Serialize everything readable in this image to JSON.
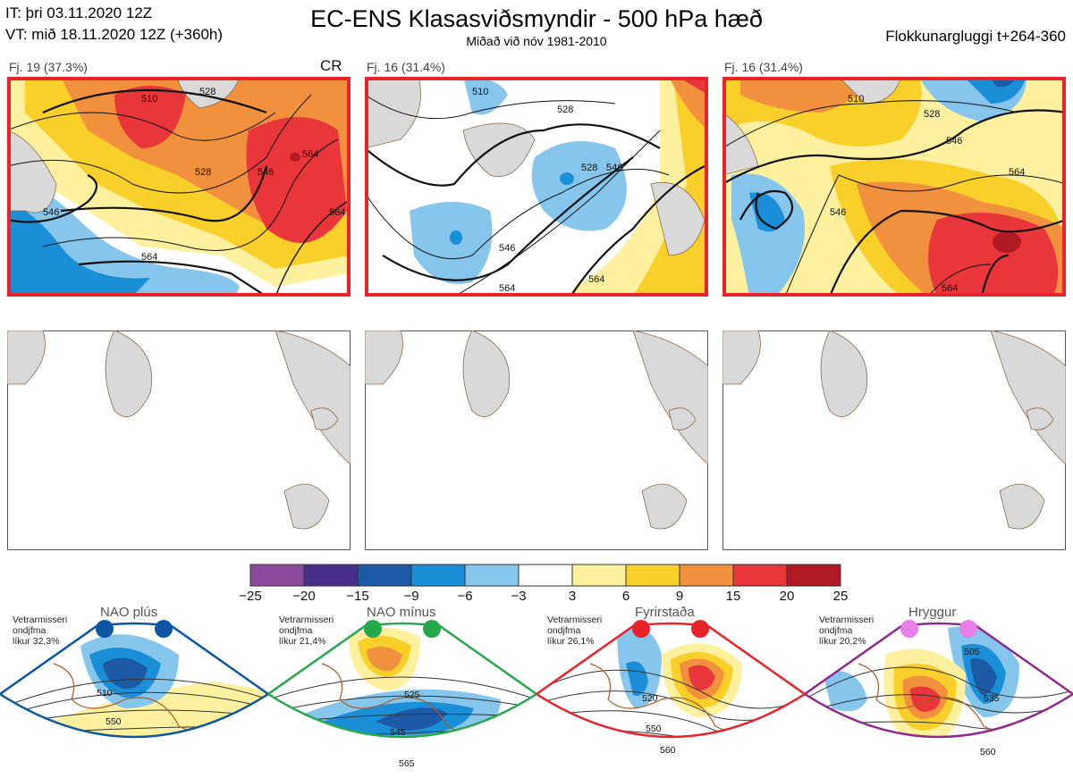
{
  "header": {
    "it_line": "IT: þri 03.11.2020 12Z",
    "vt_line": "VT: mið 18.11.2020 12Z  (+360h)",
    "title": "EC-ENS Klasasviðsmyndir - 500 hPa hæð",
    "subtitle": "Miðað við nóv 1981-2010",
    "window": "Flokkunargluggi t+264-360"
  },
  "panels": [
    {
      "label": "Fj. 19 (37.3%)",
      "tag": "CR",
      "contours": [
        "510",
        "528",
        "528",
        "546",
        "546",
        "564",
        "564",
        "564"
      ]
    },
    {
      "label": "Fj. 16 (31.4%)",
      "tag": "",
      "contours": [
        "510",
        "528",
        "528",
        "546",
        "546",
        "564",
        "564"
      ]
    },
    {
      "label": "Fj. 16 (31.4%)",
      "tag": "",
      "contours": [
        "510",
        "528",
        "546",
        "546",
        "564",
        "564"
      ]
    }
  ],
  "colorbar": {
    "ticks": [
      "−25",
      "−20",
      "−15",
      "−9",
      "−6",
      "−3",
      "3",
      "6",
      "9",
      "15",
      "20",
      "25"
    ],
    "colors": [
      "#8b4a9c",
      "#4a2e8c",
      "#1c5aa6",
      "#1a8fd8",
      "#86c6ec",
      "#ffffff",
      "#fdf1a0",
      "#f9cf2a",
      "#f2913d",
      "#e8363a",
      "#b11a22"
    ]
  },
  "regimes": [
    {
      "name": "NAO plús",
      "meta": [
        "Vetrarmisseri",
        "ondjfma",
        "líkur 32,3%"
      ],
      "color": "#0d56a6",
      "contours": [
        "510",
        "550"
      ]
    },
    {
      "name": "NAO mínus",
      "meta": [
        "Vetrarmisseri",
        "ondjfma",
        "líkur 21,4%"
      ],
      "color": "#25a84b",
      "contours": [
        "525",
        "545",
        "565"
      ]
    },
    {
      "name": "Fyrirstaða",
      "meta": [
        "Vetrarmisseri",
        "ondjfma",
        "líkur 26,1%"
      ],
      "color": "#e8232a",
      "contours": [
        "520",
        "550",
        "560"
      ]
    },
    {
      "name": "Hryggur",
      "meta": [
        "Vetrarmisseri",
        "ondjfma",
        "líkur 20,2%"
      ],
      "color": "#8e2a8e",
      "contours": [
        "505",
        "535",
        "560"
      ]
    }
  ]
}
